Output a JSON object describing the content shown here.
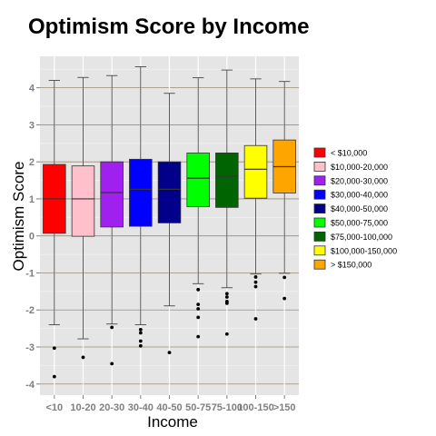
{
  "chart_data": {
    "type": "boxplot",
    "title": "Optimism Score by Income",
    "xlabel": "Income",
    "ylabel": "Optimism Score",
    "ylim": [
      -4.3,
      4.85
    ],
    "yticks": [
      -4,
      -3,
      -2,
      -1,
      0,
      1,
      2,
      3,
      4
    ],
    "categories": [
      "<10",
      "10-20",
      "20-30",
      "30-40",
      "40-50",
      "50-75",
      "75-100",
      "100-150",
      ">150"
    ],
    "legend": {
      "position": "right",
      "entries": [
        {
          "label": "< $10,000",
          "color": "#ff0000"
        },
        {
          "label": "$10,000-20,000",
          "color": "#ffc0cb"
        },
        {
          "label": "$20,000-30,000",
          "color": "#a020f0"
        },
        {
          "label": "$30,000-40,000",
          "color": "#0000ff"
        },
        {
          "label": "$40,000-50,000",
          "color": "#00008b"
        },
        {
          "label": "$50,000-75,000",
          "color": "#00ff00"
        },
        {
          "label": "$75,000-100,000",
          "color": "#006400"
        },
        {
          "label": "$100,000-150,000",
          "color": "#ffff00"
        },
        {
          "label": "> $150,000",
          "color": "#ffa500"
        }
      ]
    },
    "boxes": [
      {
        "q1": 0.07,
        "median": 1.0,
        "q3": 1.93,
        "whisker_low": -2.4,
        "whisker_high": 4.2,
        "outliers": [
          -3.03,
          -3.8
        ]
      },
      {
        "q1": -0.01,
        "median": 1.0,
        "q3": 1.89,
        "whisker_low": -2.78,
        "whisker_high": 4.28,
        "outliers": [
          -3.28
        ]
      },
      {
        "q1": 0.24,
        "median": 1.17,
        "q3": 2.0,
        "whisker_low": -2.38,
        "whisker_high": 4.33,
        "outliers": [
          -2.47,
          -3.45
        ]
      },
      {
        "q1": 0.26,
        "median": 1.26,
        "q3": 2.07,
        "whisker_low": -2.4,
        "whisker_high": 4.57,
        "outliers": [
          -2.53,
          -2.62,
          -2.84,
          -2.97
        ]
      },
      {
        "q1": 0.35,
        "median": 1.26,
        "q3": 2.0,
        "whisker_low": -1.89,
        "whisker_high": 3.85,
        "outliers": [
          -3.15
        ]
      },
      {
        "q1": 0.79,
        "median": 1.56,
        "q3": 2.24,
        "whisker_low": -1.29,
        "whisker_high": 4.27,
        "outliers": [
          -1.45,
          -1.85,
          -1.97,
          -2.2,
          -2.72
        ]
      },
      {
        "q1": 0.77,
        "median": 1.61,
        "q3": 2.24,
        "whisker_low": -1.4,
        "whisker_high": 4.48,
        "outliers": [
          -1.56,
          -1.65,
          -1.77,
          -1.82,
          -2.65
        ]
      },
      {
        "q1": 1.02,
        "median": 1.8,
        "q3": 2.44,
        "whisker_low": -1.03,
        "whisker_high": 4.24,
        "outliers": [
          -1.11,
          -1.25,
          -1.37,
          -2.24
        ]
      },
      {
        "q1": 1.16,
        "median": 1.87,
        "q3": 2.59,
        "whisker_low": -1.01,
        "whisker_high": 4.17,
        "outliers": [
          -1.12,
          -1.69
        ]
      }
    ],
    "grid": true
  }
}
